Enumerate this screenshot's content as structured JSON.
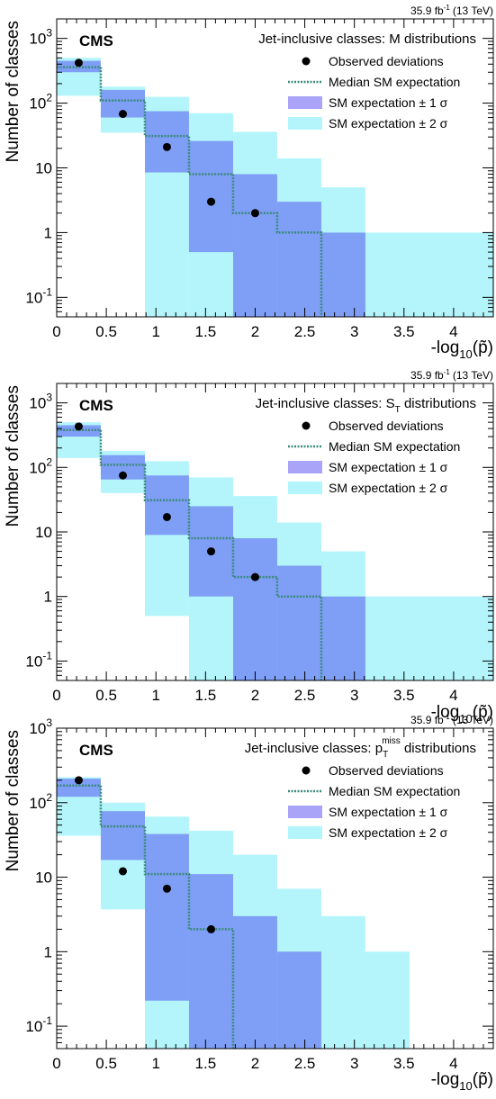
{
  "chart_data": [
    {
      "type": "histogram",
      "lumi": {
        "value": "35.9 fb",
        "exp": "-1",
        "energy": "(13 TeV)"
      },
      "cms_label": "CMS",
      "title": {
        "prefix": "Jet-inclusive classes: ",
        "var": "M",
        "var_sub": "",
        "var_sup": "",
        "suffix": " distributions"
      },
      "ylabel": "Number of classes",
      "xlabel": {
        "prefix": "-log",
        "sub": "10",
        "suffix": "(p̃)"
      },
      "x_ticks": [
        "0",
        "0.5",
        "1",
        "1.5",
        "2",
        "2.5",
        "3",
        "3.5",
        "4"
      ],
      "y_ticks": [
        {
          "base": "10",
          "exp": "-1"
        },
        {
          "base": "1",
          "exp": ""
        },
        {
          "base": "10",
          "exp": ""
        },
        {
          "base": "10",
          "exp": "2"
        },
        {
          "base": "10",
          "exp": "3"
        }
      ],
      "xlim": [
        0,
        4.4
      ],
      "ylim": [
        0.05,
        2000
      ],
      "scale": "log",
      "bin_edges": [
        0,
        0.444,
        0.889,
        1.333,
        1.778,
        2.222,
        2.667,
        3.111,
        3.556,
        4.4
      ],
      "median": [
        360,
        110,
        31,
        8,
        2,
        1,
        null,
        null,
        null
      ],
      "band_1sigma": [
        [
          300,
          450
        ],
        [
          60,
          160
        ],
        [
          8.5,
          75
        ],
        [
          0.5,
          26
        ],
        [
          0.05,
          8
        ],
        [
          0.05,
          3
        ],
        [
          0.05,
          1
        ],
        [
          null,
          null
        ],
        [
          null,
          null
        ]
      ],
      "band_2sigma": [
        [
          130,
          500
        ],
        [
          35,
          180
        ],
        [
          0.05,
          125
        ],
        [
          0.05,
          70
        ],
        [
          0.05,
          36
        ],
        [
          0.05,
          14
        ],
        [
          0.05,
          5
        ],
        [
          0.05,
          1
        ],
        [
          0.05,
          1
        ]
      ],
      "observed": [
        {
          "x": 0.222,
          "y": 420
        },
        {
          "x": 0.667,
          "y": 68
        },
        {
          "x": 1.111,
          "y": 21
        },
        {
          "x": 1.556,
          "y": 3
        },
        {
          "x": 2.0,
          "y": 2
        }
      ],
      "legend": [
        "Observed deviations",
        "Median SM expectation",
        "SM expectation ± 1 σ",
        "SM expectation ± 2 σ"
      ],
      "colors": {
        "sigma1": "#7f9ef5",
        "sigma2": "#b3f5fb",
        "sigma1_legend": "#a9a4f7",
        "median": "#3a8a7c",
        "observed": "#000000"
      }
    },
    {
      "type": "histogram",
      "lumi": {
        "value": "35.9 fb",
        "exp": "-1",
        "energy": "(13 TeV)"
      },
      "cms_label": "CMS",
      "title": {
        "prefix": "Jet-inclusive classes: ",
        "var": "S",
        "var_sub": "T",
        "var_sup": "",
        "suffix": " distributions"
      },
      "ylabel": "Number of classes",
      "xlabel": {
        "prefix": "-log",
        "sub": "10",
        "suffix": "(p̃)"
      },
      "x_ticks": [
        "0",
        "0.5",
        "1",
        "1.5",
        "2",
        "2.5",
        "3",
        "3.5",
        "4"
      ],
      "y_ticks": [
        {
          "base": "10",
          "exp": "-1"
        },
        {
          "base": "1",
          "exp": ""
        },
        {
          "base": "10",
          "exp": ""
        },
        {
          "base": "10",
          "exp": "2"
        },
        {
          "base": "10",
          "exp": "3"
        }
      ],
      "xlim": [
        0,
        4.4
      ],
      "ylim": [
        0.05,
        2000
      ],
      "scale": "log",
      "bin_edges": [
        0,
        0.444,
        0.889,
        1.333,
        1.778,
        2.222,
        2.667,
        3.111,
        3.556,
        4.4
      ],
      "median": [
        380,
        110,
        31,
        8,
        2,
        1,
        null,
        null,
        null
      ],
      "band_1sigma": [
        [
          300,
          450
        ],
        [
          65,
          155
        ],
        [
          9,
          75
        ],
        [
          1,
          25
        ],
        [
          0.05,
          8
        ],
        [
          0.05,
          3
        ],
        [
          0.05,
          1
        ],
        [
          null,
          null
        ],
        [
          null,
          null
        ]
      ],
      "band_2sigma": [
        [
          140,
          500
        ],
        [
          40,
          180
        ],
        [
          0.5,
          125
        ],
        [
          0.05,
          70
        ],
        [
          0.05,
          36
        ],
        [
          0.05,
          14
        ],
        [
          0.05,
          5
        ],
        [
          0.05,
          1
        ],
        [
          0.05,
          1
        ]
      ],
      "observed": [
        {
          "x": 0.222,
          "y": 430
        },
        {
          "x": 0.667,
          "y": 75
        },
        {
          "x": 1.111,
          "y": 17
        },
        {
          "x": 1.556,
          "y": 5
        },
        {
          "x": 2.0,
          "y": 2
        }
      ],
      "legend": [
        "Observed deviations",
        "Median SM expectation",
        "SM expectation ± 1 σ",
        "SM expectation ± 2 σ"
      ],
      "colors": {
        "sigma1": "#7f9ef5",
        "sigma2": "#b3f5fb",
        "sigma1_legend": "#a9a4f7",
        "median": "#3a8a7c",
        "observed": "#000000"
      }
    },
    {
      "type": "histogram",
      "lumi": {
        "value": "35.9 fb",
        "exp": "-1",
        "energy": "(13 TeV)"
      },
      "cms_label": "CMS",
      "title": {
        "prefix": "Jet-inclusive classes: ",
        "var": "p",
        "var_sub": "T",
        "var_sup": "miss",
        "suffix": " distributions"
      },
      "ylabel": "Number of classes",
      "xlabel": {
        "prefix": "-log",
        "sub": "10",
        "suffix": "(p̃)"
      },
      "x_ticks": [
        "0",
        "0.5",
        "1",
        "1.5",
        "2",
        "2.5",
        "3",
        "3.5",
        "4"
      ],
      "y_ticks": [
        {
          "base": "10",
          "exp": "-1"
        },
        {
          "base": "1",
          "exp": ""
        },
        {
          "base": "10",
          "exp": ""
        },
        {
          "base": "10",
          "exp": "2"
        },
        {
          "base": "10",
          "exp": "3"
        }
      ],
      "xlim": [
        0,
        4.4
      ],
      "ylim": [
        0.05,
        1000
      ],
      "scale": "log",
      "bin_edges": [
        0,
        0.444,
        0.889,
        1.333,
        1.778,
        2.222,
        2.667,
        3.111,
        3.556,
        4.4
      ],
      "median": [
        170,
        48,
        11,
        2,
        null,
        null,
        null,
        null,
        null
      ],
      "band_1sigma": [
        [
          120,
          210
        ],
        [
          17,
          77
        ],
        [
          0.22,
          38
        ],
        [
          0.05,
          11
        ],
        [
          0.05,
          3
        ],
        [
          0.05,
          1
        ],
        [
          null,
          null
        ],
        [
          null,
          null
        ],
        [
          null,
          null
        ]
      ],
      "band_2sigma": [
        [
          36,
          220
        ],
        [
          3.7,
          100
        ],
        [
          0.05,
          65
        ],
        [
          0.05,
          42
        ],
        [
          0.05,
          20
        ],
        [
          0.05,
          7
        ],
        [
          0.05,
          3
        ],
        [
          0.05,
          1
        ],
        [
          null,
          null
        ]
      ],
      "observed": [
        {
          "x": 0.222,
          "y": 200
        },
        {
          "x": 0.667,
          "y": 12
        },
        {
          "x": 1.111,
          "y": 7
        },
        {
          "x": 1.556,
          "y": 2
        }
      ],
      "legend": [
        "Observed deviations",
        "Median SM expectation",
        "SM expectation ± 1 σ",
        "SM expectation ± 2 σ"
      ],
      "colors": {
        "sigma1": "#7f9ef5",
        "sigma2": "#b3f5fb",
        "sigma1_legend": "#a9a4f7",
        "median": "#3a8a7c",
        "observed": "#000000"
      }
    }
  ]
}
